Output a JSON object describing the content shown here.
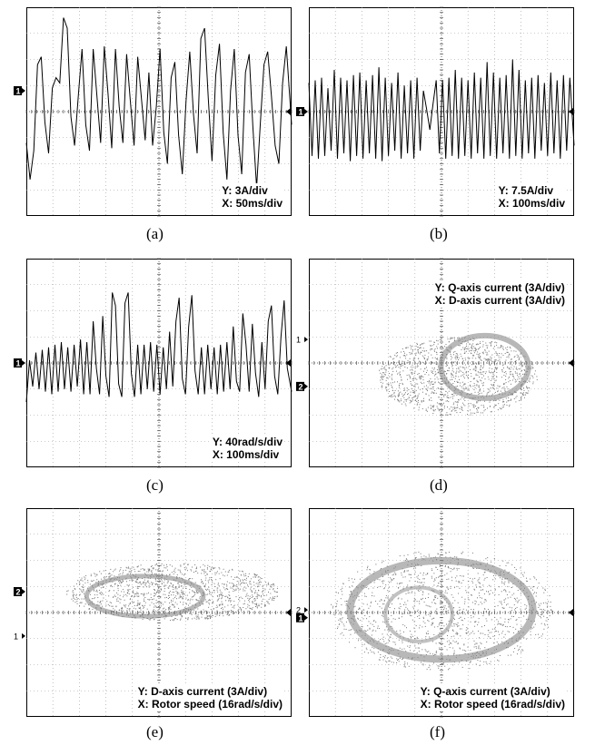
{
  "chart_data": [
    {
      "panel": "(a)",
      "type": "line",
      "x_unit": "ms",
      "y_unit": "A",
      "scale": {
        "y": "3A/div",
        "x": "50ms/div"
      },
      "x_range_div": [
        0,
        10
      ],
      "y_range_div": [
        -4,
        4
      ],
      "grid": true,
      "markers": [
        "1"
      ],
      "series": [
        {
          "x": [
            0,
            0.14,
            0.28,
            0.42,
            0.56,
            0.7,
            0.84,
            0.98,
            1.12,
            1.26,
            1.4,
            1.54,
            1.68,
            1.82,
            1.96,
            2.1,
            2.24,
            2.38,
            2.52,
            2.66,
            2.8,
            2.94,
            3.08,
            3.22,
            3.36,
            3.5,
            3.64,
            3.78,
            3.92,
            4.06,
            4.2,
            4.34,
            4.48,
            4.62,
            4.76,
            4.9,
            5.04,
            5.18,
            5.32,
            5.46,
            5.6,
            5.74,
            5.88,
            6.02,
            6.16,
            6.3,
            6.44,
            6.58,
            6.72,
            6.86,
            7,
            7.14,
            7.28,
            7.42,
            7.56,
            7.7,
            7.84,
            7.98,
            8.12,
            8.26,
            8.4,
            8.54,
            8.68,
            8.82,
            8.96,
            9.1,
            9.24,
            9.38,
            9.52,
            9.66,
            9.8,
            10
          ],
          "y": [
            -1.2,
            -2.6,
            -1.5,
            1.8,
            2.1,
            -0.4,
            -1.6,
            0.9,
            1.3,
            1.1,
            3.6,
            3.2,
            -0.2,
            -1.3,
            0.6,
            2.4,
            -0.5,
            -1.5,
            2.4,
            0.6,
            -1.2,
            2.5,
            0.7,
            -1.4,
            2.4,
            0.2,
            -1.2,
            2.2,
            0.4,
            -1.3,
            2.1,
            0.5,
            -1.1,
            1.5,
            -1.3,
            0.2,
            2.4,
            -0.8,
            -2.0,
            1.3,
            1.9,
            -0.9,
            -2.4,
            0.4,
            2.3,
            -0.1,
            -1.6,
            2.8,
            3.2,
            0.5,
            -1.9,
            1.4,
            2.6,
            -0.8,
            -2.6,
            0.8,
            2.4,
            -0.9,
            -2.4,
            1.5,
            2.2,
            -0.6,
            -2.9,
            -0.5,
            1.8,
            2.3,
            0.6,
            -1.3,
            -2.0,
            1.1,
            2.5,
            -0.5
          ]
        }
      ]
    },
    {
      "panel": "(b)",
      "type": "line",
      "x_unit": "ms",
      "y_unit": "A",
      "scale": {
        "y": "7.5A/div",
        "x": "100ms/div"
      },
      "x_range_div": [
        0,
        10
      ],
      "y_range_div": [
        -4,
        4
      ],
      "grid": true,
      "markers": [
        "1"
      ],
      "series": [
        {
          "x": [
            0,
            0.12,
            0.24,
            0.36,
            0.48,
            0.6,
            0.72,
            0.84,
            0.96,
            1.08,
            1.2,
            1.32,
            1.44,
            1.56,
            1.68,
            1.8,
            1.92,
            2.04,
            2.16,
            2.28,
            2.4,
            2.52,
            2.64,
            2.76,
            2.88,
            3,
            3.12,
            3.24,
            3.36,
            3.48,
            3.6,
            3.72,
            3.84,
            3.96,
            4.08,
            4.2,
            4.32,
            4.44,
            4.56,
            4.68,
            4.8,
            4.92,
            5.04,
            5.16,
            5.28,
            5.4,
            5.52,
            5.64,
            5.76,
            5.88,
            6,
            6.12,
            6.24,
            6.36,
            6.48,
            6.6,
            6.72,
            6.84,
            6.96,
            7.08,
            7.2,
            7.32,
            7.44,
            7.56,
            7.68,
            7.8,
            7.92,
            8.04,
            8.16,
            8.28,
            8.4,
            8.52,
            8.64,
            8.76,
            8.88,
            9,
            9.12,
            9.24,
            9.36,
            9.48,
            9.6,
            9.72,
            9.84,
            10
          ],
          "y": [
            1.1,
            -1.7,
            1.2,
            -1.8,
            1.3,
            -1.7,
            0.9,
            -1.5,
            1.6,
            -1.8,
            1.3,
            -1.6,
            1.2,
            -1.9,
            1.4,
            -1.7,
            1.5,
            -1.8,
            1.2,
            -1.6,
            1.4,
            -1.8,
            1.7,
            -1.9,
            1.3,
            -1.7,
            1.1,
            -1.5,
            1.5,
            -1.8,
            1.0,
            -1.6,
            1.2,
            -1.8,
            1.3,
            -1.5,
            0.8,
            0.1,
            -0.7,
            0.3,
            1.2,
            -1.6,
            1.2,
            -1.8,
            1.3,
            -1.7,
            1.6,
            -1.8,
            1.3,
            -1.7,
            1.2,
            -1.8,
            1.5,
            -1.6,
            1.3,
            -1.8,
            1.9,
            -1.7,
            1.5,
            -1.8,
            1.3,
            -1.6,
            1.4,
            -1.8,
            2.0,
            -1.7,
            1.6,
            -1.8,
            1.2,
            -1.6,
            1.3,
            -1.8,
            1.4,
            -1.5,
            1.1,
            -1.7,
            1.5,
            -1.6,
            1.2,
            -1.8,
            1.4,
            -1.5,
            1.3,
            -1.3
          ]
        }
      ]
    },
    {
      "panel": "(c)",
      "type": "line",
      "x_unit": "ms",
      "y_unit": "rad/s",
      "scale": {
        "y": "40rad/s/div",
        "x": "100ms/div"
      },
      "x_range_div": [
        0,
        10
      ],
      "y_range_div": [
        -4,
        4
      ],
      "grid": true,
      "markers": [
        "1"
      ],
      "series": [
        {
          "x": [
            0,
            0.12,
            0.24,
            0.36,
            0.48,
            0.6,
            0.72,
            0.84,
            0.96,
            1.08,
            1.2,
            1.32,
            1.44,
            1.56,
            1.68,
            1.8,
            1.92,
            2.04,
            2.16,
            2.28,
            2.4,
            2.52,
            2.64,
            2.76,
            2.88,
            3,
            3.12,
            3.24,
            3.36,
            3.48,
            3.6,
            3.72,
            3.84,
            3.96,
            4.08,
            4.2,
            4.32,
            4.44,
            4.56,
            4.68,
            4.8,
            4.92,
            5.04,
            5.16,
            5.28,
            5.4,
            5.52,
            5.64,
            5.76,
            5.88,
            6,
            6.12,
            6.24,
            6.36,
            6.48,
            6.6,
            6.72,
            6.84,
            6.96,
            7.08,
            7.2,
            7.32,
            7.44,
            7.56,
            7.68,
            7.8,
            7.92,
            8.04,
            8.16,
            8.28,
            8.4,
            8.52,
            8.64,
            8.76,
            8.88,
            9,
            9.12,
            9.24,
            9.36,
            9.48,
            9.6,
            9.72,
            9.84,
            10
          ],
          "y": [
            -1.5,
            0.1,
            -0.9,
            0.4,
            -1.0,
            0.5,
            -1.1,
            0.6,
            -1.2,
            0.7,
            -1.1,
            0.8,
            -1.0,
            0.6,
            -1.1,
            0.7,
            -0.9,
            0.9,
            -1.2,
            0.8,
            -1.2,
            1.6,
            -0.2,
            -1.2,
            1.8,
            -0.5,
            -1.3,
            2.7,
            2.2,
            -0.8,
            -1.3,
            2.3,
            2.7,
            -0.4,
            -1.3,
            0.7,
            -1.2,
            0.7,
            -1.0,
            0.8,
            -1.1,
            0.7,
            -1.2,
            0.6,
            -1.0,
            1.2,
            -0.9,
            1.6,
            2.5,
            -0.6,
            -1.2,
            1.4,
            2.6,
            -0.3,
            -1.2,
            0.6,
            -1.2,
            0.7,
            -1.0,
            0.6,
            -1.2,
            0.7,
            -1.1,
            0.8,
            -1.0,
            1.4,
            -0.7,
            -1.1,
            1.9,
            0.7,
            -1.1,
            1.5,
            -0.4,
            -1.3,
            0.8,
            -1.0,
            1.6,
            2.2,
            -0.5,
            -1.2,
            1.0,
            2.4,
            -0.2,
            -1.1
          ]
        }
      ]
    },
    {
      "panel": "(d)",
      "type": "scatter",
      "x_unit": "A",
      "y_unit": "A",
      "scale": {
        "y": "Q-axis current (3A/div)",
        "x": "D-axis current (3A/div)"
      },
      "x_range_div": [
        -5,
        5
      ],
      "y_range_div": [
        -4,
        4
      ],
      "grid": true,
      "markers": [
        "1",
        "2"
      ],
      "cloud": {
        "center": [
          0.6,
          -0.5
        ],
        "radii": [
          3.0,
          1.5
        ]
      }
    },
    {
      "panel": "(e)",
      "type": "scatter",
      "x_unit": "rad/s",
      "y_unit": "A",
      "scale": {
        "y": "D-axis current (3A/div)",
        "x": "Rotor speed (16rad/s/div)"
      },
      "x_range_div": [
        -5,
        5
      ],
      "y_range_div": [
        -4,
        4
      ],
      "grid": true,
      "markers": [
        "2",
        "1"
      ],
      "cloud": {
        "center": [
          0.5,
          0.8
        ],
        "radii": [
          4.0,
          1.1
        ]
      }
    },
    {
      "panel": "(f)",
      "type": "scatter",
      "x_unit": "rad/s",
      "y_unit": "A",
      "scale": {
        "y": "Q-axis current (3A/div)",
        "x": "Rotor speed (16rad/s/div)"
      },
      "x_range_div": [
        -5,
        5
      ],
      "y_range_div": [
        -4,
        4
      ],
      "grid": true,
      "markers": [
        "2",
        "1"
      ],
      "cloud": {
        "center": [
          0.0,
          0.1
        ],
        "radii": [
          4.2,
          2.3
        ]
      }
    }
  ],
  "panels": {
    "a": {
      "y_label": "Y: 3A/div",
      "x_label": "X: 50ms/div",
      "caption": "(a)",
      "ch1": "1"
    },
    "b": {
      "y_label": "Y: 7.5A/div",
      "x_label": "X: 100ms/div",
      "caption": "(b)",
      "ch1": "1"
    },
    "c": {
      "y_label": "Y: 40rad/s/div",
      "x_label": "X: 100ms/div",
      "caption": "(c)",
      "ch1": "1"
    },
    "d": {
      "y_label": "Y: Q-axis current (3A/div)",
      "x_label": "X: D-axis current (3A/div)",
      "caption": "(d)",
      "ch1": "1",
      "ch2": "2"
    },
    "e": {
      "y_label": "Y: D-axis current (3A/div)",
      "x_label": "X: Rotor speed (16rad/s/div)",
      "caption": "(e)",
      "ch1": "1",
      "ch2": "2"
    },
    "f": {
      "y_label": "Y: Q-axis current (3A/div)",
      "x_label": "X: Rotor speed (16rad/s/div)",
      "caption": "(f)",
      "ch1": "1",
      "ch2": "2"
    }
  }
}
